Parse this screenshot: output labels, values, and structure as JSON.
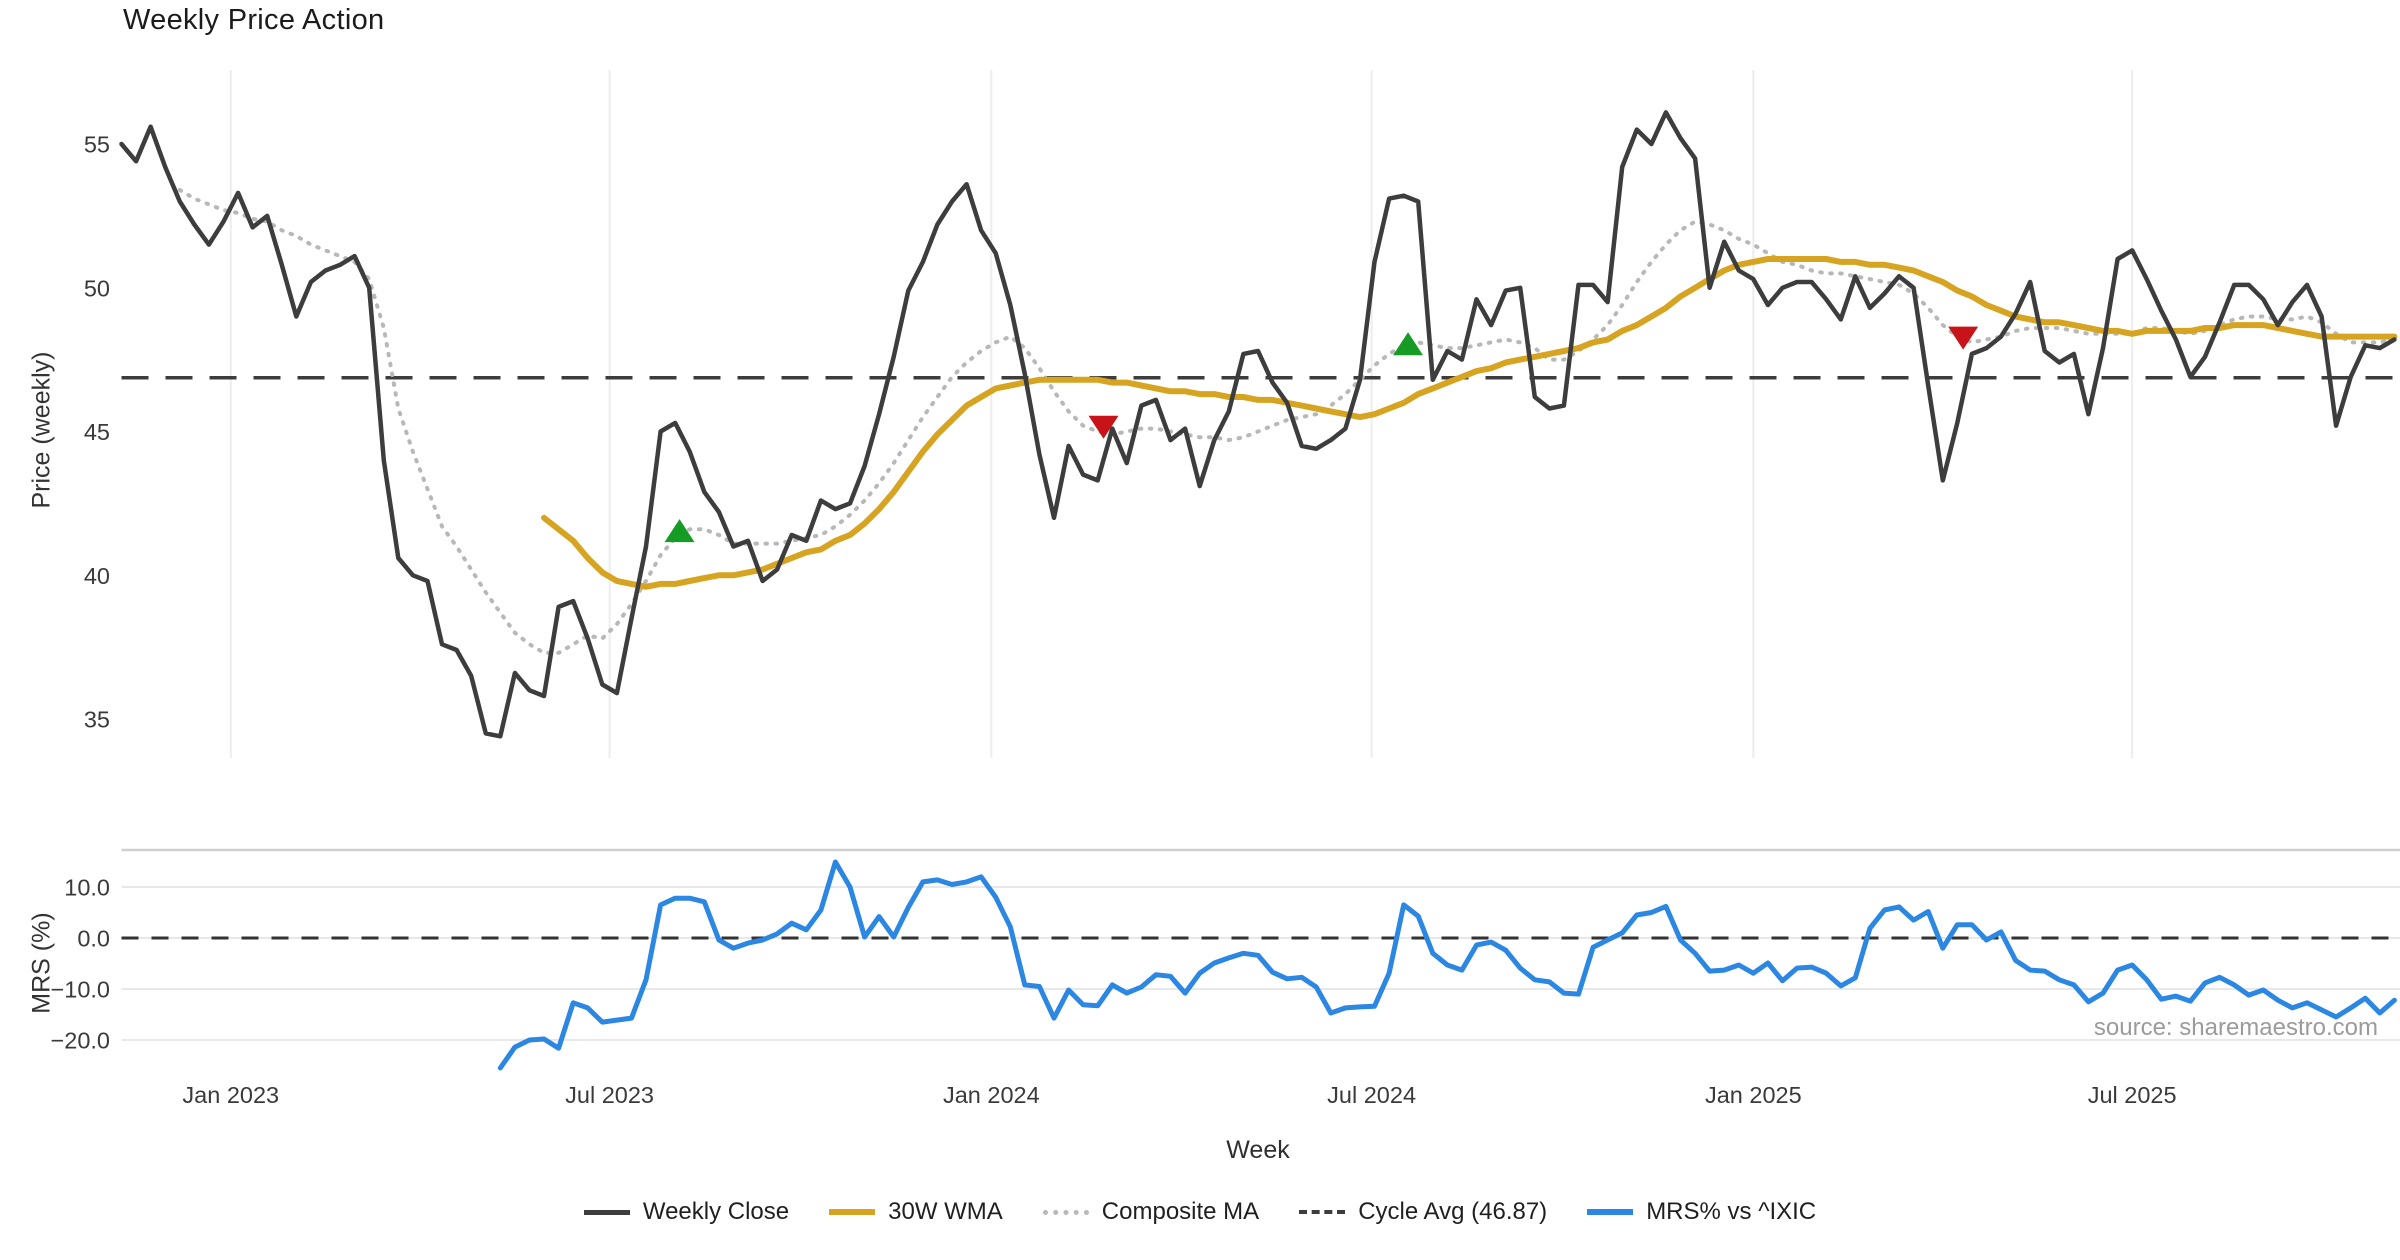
{
  "page": {
    "title": "Weekly Price Action",
    "background": "#ffffff"
  },
  "axes": {
    "price": {
      "label": "Price (weekly)"
    },
    "mrs": {
      "label": "MRS (%)"
    },
    "x": {
      "label": "Week"
    }
  },
  "source_note": "source: sharemaestro.com",
  "legend": {
    "items": [
      {
        "label": "Weekly Close",
        "color": "#3d3d3d",
        "style": "solid"
      },
      {
        "label": "30W WMA",
        "color": "#d7a421",
        "style": "solid"
      },
      {
        "label": "Composite MA",
        "color": "#b8b8b8",
        "style": "dotted"
      },
      {
        "label": "Cycle Avg (46.87)",
        "color": "#3d3d3d",
        "style": "dashed"
      },
      {
        "label": "MRS% vs ^IXIC",
        "color": "#2b87e2",
        "style": "solid"
      }
    ]
  },
  "chart_data": {
    "type": "line",
    "title": "Weekly Price Action",
    "x_unit": "week_index",
    "x_domain": [
      0,
      156.5
    ],
    "x_ticks": [
      {
        "label": "Jan 2023",
        "week": 7.5
      },
      {
        "label": "Jul 2023",
        "week": 33.5
      },
      {
        "label": "Jan 2024",
        "week": 59.7
      },
      {
        "label": "Jul 2024",
        "week": 85.8
      },
      {
        "label": "Jan 2025",
        "week": 112
      },
      {
        "label": "Jul 2025",
        "week": 138
      }
    ],
    "panels": [
      {
        "name": "price",
        "ylabel": "Price (weekly)",
        "ylim": [
          33.2,
          57.4
        ],
        "yticks": [
          {
            "label": "55",
            "value": 55
          },
          {
            "label": "50",
            "value": 50
          },
          {
            "label": "45",
            "value": 45
          },
          {
            "label": "40",
            "value": 40
          },
          {
            "label": "35",
            "value": 35
          }
        ],
        "cycle_avg": 46.87,
        "series": [
          {
            "name": "Weekly Close",
            "color": "#3d3d3d",
            "style": "solid",
            "width": 4.5,
            "start": 0,
            "values": [
              55.0,
              54.4,
              55.6,
              54.2,
              53.0,
              52.2,
              51.5,
              52.3,
              53.3,
              52.1,
              52.5,
              50.8,
              49.0,
              50.2,
              50.6,
              50.8,
              51.1,
              50.0,
              44.0,
              40.6,
              40.0,
              39.8,
              37.6,
              37.4,
              36.5,
              34.5,
              34.4,
              36.6,
              36.0,
              35.8,
              38.9,
              39.1,
              37.8,
              36.2,
              35.9,
              38.5,
              41.0,
              45.0,
              45.3,
              44.3,
              42.9,
              42.2,
              41.0,
              41.2,
              39.8,
              40.2,
              41.4,
              41.2,
              42.6,
              42.3,
              42.5,
              43.8,
              45.6,
              47.6,
              49.9,
              50.9,
              52.2,
              53.0,
              53.6,
              52.0,
              51.2,
              49.4,
              47.0,
              44.2,
              42.0,
              44.5,
              43.5,
              43.3,
              45.1,
              43.9,
              45.9,
              46.1,
              44.7,
              45.1,
              43.1,
              44.7,
              45.7,
              47.7,
              47.8,
              46.7,
              46.0,
              44.5,
              44.4,
              44.7,
              45.1,
              46.8,
              50.9,
              53.1,
              53.2,
              53.0,
              46.8,
              47.8,
              47.5,
              49.6,
              48.7,
              49.9,
              50.0,
              46.2,
              45.8,
              45.9,
              50.1,
              50.1,
              49.5,
              54.2,
              55.5,
              55.0,
              56.1,
              55.2,
              54.5,
              50.0,
              51.6,
              50.6,
              50.3,
              49.4,
              50.0,
              50.2,
              50.2,
              49.6,
              48.9,
              50.4,
              49.3,
              49.8,
              50.4,
              50.0,
              46.6,
              43.3,
              45.3,
              47.7,
              47.9,
              48.3,
              49.1,
              50.2,
              47.8,
              47.4,
              47.7,
              45.6,
              47.9,
              51.0,
              51.3,
              50.3,
              49.2,
              48.2,
              46.9,
              47.6,
              48.8,
              50.1,
              50.1,
              49.6,
              48.7,
              49.5,
              50.1,
              49.0,
              45.2,
              46.9,
              48.0,
              47.9,
              48.2
            ]
          },
          {
            "name": "30W WMA",
            "color": "#d7a421",
            "style": "solid",
            "width": 6,
            "start": 29,
            "values": [
              42.0,
              41.6,
              41.2,
              40.6,
              40.1,
              39.8,
              39.7,
              39.6,
              39.7,
              39.7,
              39.8,
              39.9,
              40.0,
              40.0,
              40.1,
              40.2,
              40.4,
              40.6,
              40.8,
              40.9,
              41.2,
              41.4,
              41.8,
              42.3,
              42.9,
              43.6,
              44.3,
              44.9,
              45.4,
              45.9,
              46.2,
              46.5,
              46.6,
              46.7,
              46.8,
              46.8,
              46.8,
              46.8,
              46.8,
              46.7,
              46.7,
              46.6,
              46.5,
              46.4,
              46.4,
              46.3,
              46.3,
              46.2,
              46.2,
              46.1,
              46.1,
              46.0,
              45.9,
              45.8,
              45.7,
              45.6,
              45.5,
              45.6,
              45.8,
              46.0,
              46.3,
              46.5,
              46.7,
              46.9,
              47.1,
              47.2,
              47.4,
              47.5,
              47.6,
              47.7,
              47.8,
              47.9,
              48.1,
              48.2,
              48.5,
              48.7,
              49.0,
              49.3,
              49.7,
              50.0,
              50.3,
              50.6,
              50.8,
              50.9,
              51.0,
              51.0,
              51.0,
              51.0,
              51.0,
              50.9,
              50.9,
              50.8,
              50.8,
              50.7,
              50.6,
              50.4,
              50.2,
              49.9,
              49.7,
              49.4,
              49.2,
              49.0,
              48.9,
              48.8,
              48.8,
              48.7,
              48.6,
              48.5,
              48.5,
              48.4,
              48.5,
              48.5,
              48.5,
              48.5,
              48.6,
              48.6,
              48.7,
              48.7,
              48.7,
              48.6,
              48.5,
              48.4,
              48.3,
              48.3,
              48.3,
              48.3,
              48.3,
              48.3
            ]
          },
          {
            "name": "Composite MA",
            "color": "#b8b8b8",
            "style": "dotted",
            "width": 4,
            "start": 4,
            "values": [
              53.4,
              53.1,
              52.9,
              52.7,
              52.6,
              52.4,
              52.3,
              52.0,
              51.8,
              51.5,
              51.3,
              51.1,
              50.9,
              50.3,
              48.6,
              45.8,
              44.3,
              43.0,
              41.7,
              41.0,
              40.2,
              39.4,
              38.7,
              38.0,
              37.6,
              37.3,
              37.3,
              37.6,
              37.9,
              37.8,
              38.3,
              39.0,
              39.8,
              40.7,
              41.3,
              41.6,
              41.6,
              41.4,
              41.1,
              41.1,
              41.1,
              41.1,
              41.2,
              41.3,
              41.4,
              41.7,
              42.1,
              42.6,
              43.2,
              43.9,
              44.7,
              45.5,
              46.2,
              46.9,
              47.4,
              47.8,
              48.1,
              48.3,
              47.9,
              47.2,
              46.4,
              45.7,
              45.2,
              45.0,
              44.9,
              45.0,
              45.1,
              45.1,
              45.0,
              44.9,
              44.8,
              44.8,
              44.7,
              44.8,
              45.0,
              45.2,
              45.4,
              45.5,
              45.6,
              45.9,
              46.3,
              46.8,
              47.3,
              47.7,
              48.0,
              48.1,
              48.0,
              47.9,
              47.9,
              48.0,
              48.1,
              48.2,
              48.1,
              47.9,
              47.5,
              47.5,
              47.8,
              48.2,
              48.7,
              49.4,
              50.2,
              50.9,
              51.5,
              52.0,
              52.3,
              52.2,
              52.0,
              51.7,
              51.5,
              51.2,
              50.9,
              50.8,
              50.6,
              50.5,
              50.5,
              50.4,
              50.3,
              50.2,
              50.1,
              49.8,
              49.3,
              48.7,
              48.3,
              48.1,
              48.2,
              48.3,
              48.5,
              48.6,
              48.6,
              48.6,
              48.5,
              48.4,
              48.4,
              48.4,
              48.4,
              48.6,
              48.6,
              48.5,
              48.4,
              48.5,
              48.7,
              48.9,
              49.0,
              49.0,
              48.9,
              48.9,
              49.0,
              48.8,
              48.4,
              48.1,
              48.1,
              48.1,
              48.2
            ]
          }
        ],
        "markers": {
          "buy": {
            "shape": "triangle-up",
            "color": "#169b24",
            "points": [
              [
                38.3,
                41.5
              ],
              [
                88.3,
                48.0
              ]
            ]
          },
          "sell": {
            "shape": "triangle-down",
            "color": "#c81418",
            "points": [
              [
                67.4,
                45.2
              ],
              [
                126.4,
                48.3
              ]
            ]
          }
        }
      },
      {
        "name": "mrs",
        "ylabel": "MRS (%)",
        "ylim": [
          -27.5,
          17.3
        ],
        "yticks": [
          {
            "label": "10.0",
            "value": 10
          },
          {
            "label": "0.0",
            "value": 0
          },
          {
            "label": "−10.0",
            "value": -10
          },
          {
            "label": "−20.0",
            "value": -20
          }
        ],
        "zero_line": 0,
        "series": [
          {
            "name": "MRS% vs ^IXIC",
            "color": "#2b87e2",
            "style": "solid",
            "width": 5,
            "start": 26,
            "values": [
              -25.5,
              -21.4,
              -20.0,
              -19.8,
              -21.6,
              -12.7,
              -13.7,
              -16.5,
              -16.1,
              -15.7,
              -8.2,
              6.5,
              7.8,
              7.8,
              7.1,
              -0.4,
              -2.0,
              -1.0,
              -0.4,
              0.8,
              2.9,
              1.6,
              5.5,
              14.9,
              10.0,
              0.2,
              4.2,
              0.2,
              6.0,
              11.0,
              11.4,
              10.5,
              11.0,
              12.0,
              8.0,
              2.2,
              -9.2,
              -9.5,
              -15.7,
              -10.2,
              -13.1,
              -13.3,
              -9.2,
              -10.8,
              -9.6,
              -7.2,
              -7.5,
              -10.8,
              -6.9,
              -4.9,
              -3.9,
              -3.0,
              -3.4,
              -6.7,
              -8.0,
              -7.7,
              -9.6,
              -14.7,
              -13.7,
              -13.5,
              -13.4,
              -6.9,
              6.5,
              4.3,
              -3.0,
              -5.3,
              -6.3,
              -1.4,
              -0.8,
              -2.4,
              -5.9,
              -8.2,
              -8.6,
              -10.8,
              -11.0,
              -1.8,
              -0.4,
              1.0,
              4.5,
              5.0,
              6.2,
              -0.4,
              -3.0,
              -6.5,
              -6.3,
              -5.3,
              -6.9,
              -4.9,
              -8.4,
              -5.9,
              -5.7,
              -6.9,
              -9.4,
              -7.8,
              1.9,
              5.5,
              6.1,
              3.5,
              5.2,
              -2.0,
              2.6,
              2.6,
              -0.4,
              1.2,
              -4.4,
              -6.3,
              -6.5,
              -8.2,
              -9.2,
              -12.5,
              -10.8,
              -6.3,
              -5.3,
              -8.2,
              -12.0,
              -11.4,
              -12.4,
              -8.8,
              -7.7,
              -9.2,
              -11.2,
              -10.2,
              -12.2,
              -13.7,
              -12.7,
              -14.1,
              -15.5,
              -13.7,
              -11.8,
              -14.7,
              -12.2
            ]
          }
        ]
      }
    ],
    "style": {
      "grid_vertical_color": "#ededed",
      "grid_horizontal_color": "#e8e8e8",
      "subplot_top_spine_color": "#cfcfcf",
      "dashed_line_color": "#3d3d3d",
      "tick_label_color": "#3a3a3a"
    }
  }
}
